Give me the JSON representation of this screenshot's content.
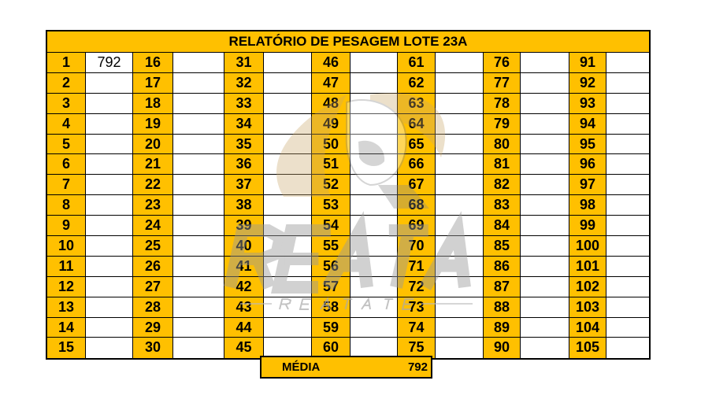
{
  "report": {
    "title": "RELATÓRIO DE PESAGEM LOTE  23A",
    "entries": [
      {
        "n": "1",
        "v": "792"
      },
      {
        "n": "2",
        "v": ""
      },
      {
        "n": "3",
        "v": ""
      },
      {
        "n": "4",
        "v": ""
      },
      {
        "n": "5",
        "v": ""
      },
      {
        "n": "6",
        "v": ""
      },
      {
        "n": "7",
        "v": ""
      },
      {
        "n": "8",
        "v": ""
      },
      {
        "n": "9",
        "v": ""
      },
      {
        "n": "10",
        "v": ""
      },
      {
        "n": "11",
        "v": ""
      },
      {
        "n": "12",
        "v": ""
      },
      {
        "n": "13",
        "v": ""
      },
      {
        "n": "14",
        "v": ""
      },
      {
        "n": "15",
        "v": ""
      },
      {
        "n": "16",
        "v": ""
      },
      {
        "n": "17",
        "v": ""
      },
      {
        "n": "18",
        "v": ""
      },
      {
        "n": "19",
        "v": ""
      },
      {
        "n": "20",
        "v": ""
      },
      {
        "n": "21",
        "v": ""
      },
      {
        "n": "22",
        "v": ""
      },
      {
        "n": "23",
        "v": ""
      },
      {
        "n": "24",
        "v": ""
      },
      {
        "n": "25",
        "v": ""
      },
      {
        "n": "26",
        "v": ""
      },
      {
        "n": "27",
        "v": ""
      },
      {
        "n": "28",
        "v": ""
      },
      {
        "n": "29",
        "v": ""
      },
      {
        "n": "30",
        "v": ""
      },
      {
        "n": "31",
        "v": ""
      },
      {
        "n": "32",
        "v": ""
      },
      {
        "n": "33",
        "v": ""
      },
      {
        "n": "34",
        "v": ""
      },
      {
        "n": "35",
        "v": ""
      },
      {
        "n": "36",
        "v": ""
      },
      {
        "n": "37",
        "v": ""
      },
      {
        "n": "38",
        "v": ""
      },
      {
        "n": "39",
        "v": ""
      },
      {
        "n": "40",
        "v": ""
      },
      {
        "n": "41",
        "v": ""
      },
      {
        "n": "42",
        "v": ""
      },
      {
        "n": "43",
        "v": ""
      },
      {
        "n": "44",
        "v": ""
      },
      {
        "n": "45",
        "v": ""
      },
      {
        "n": "46",
        "v": ""
      },
      {
        "n": "47",
        "v": ""
      },
      {
        "n": "48",
        "v": ""
      },
      {
        "n": "49",
        "v": ""
      },
      {
        "n": "50",
        "v": ""
      },
      {
        "n": "51",
        "v": ""
      },
      {
        "n": "52",
        "v": ""
      },
      {
        "n": "53",
        "v": ""
      },
      {
        "n": "54",
        "v": ""
      },
      {
        "n": "55",
        "v": ""
      },
      {
        "n": "56",
        "v": ""
      },
      {
        "n": "57",
        "v": ""
      },
      {
        "n": "58",
        "v": ""
      },
      {
        "n": "59",
        "v": ""
      },
      {
        "n": "60",
        "v": ""
      },
      {
        "n": "61",
        "v": ""
      },
      {
        "n": "62",
        "v": ""
      },
      {
        "n": "63",
        "v": ""
      },
      {
        "n": "64",
        "v": ""
      },
      {
        "n": "65",
        "v": ""
      },
      {
        "n": "66",
        "v": ""
      },
      {
        "n": "67",
        "v": ""
      },
      {
        "n": "68",
        "v": ""
      },
      {
        "n": "69",
        "v": ""
      },
      {
        "n": "70",
        "v": ""
      },
      {
        "n": "71",
        "v": ""
      },
      {
        "n": "72",
        "v": ""
      },
      {
        "n": "73",
        "v": ""
      },
      {
        "n": "74",
        "v": ""
      },
      {
        "n": "75",
        "v": ""
      },
      {
        "n": "76",
        "v": ""
      },
      {
        "n": "77",
        "v": ""
      },
      {
        "n": "78",
        "v": ""
      },
      {
        "n": "79",
        "v": ""
      },
      {
        "n": "80",
        "v": ""
      },
      {
        "n": "81",
        "v": ""
      },
      {
        "n": "82",
        "v": ""
      },
      {
        "n": "83",
        "v": ""
      },
      {
        "n": "84",
        "v": ""
      },
      {
        "n": "85",
        "v": ""
      },
      {
        "n": "86",
        "v": ""
      },
      {
        "n": "87",
        "v": ""
      },
      {
        "n": "88",
        "v": ""
      },
      {
        "n": "89",
        "v": ""
      },
      {
        "n": "90",
        "v": ""
      },
      {
        "n": "91",
        "v": ""
      },
      {
        "n": "92",
        "v": ""
      },
      {
        "n": "93",
        "v": ""
      },
      {
        "n": "94",
        "v": ""
      },
      {
        "n": "95",
        "v": ""
      },
      {
        "n": "96",
        "v": ""
      },
      {
        "n": "97",
        "v": ""
      },
      {
        "n": "98",
        "v": ""
      },
      {
        "n": "99",
        "v": ""
      },
      {
        "n": "100",
        "v": ""
      },
      {
        "n": "101",
        "v": ""
      },
      {
        "n": "102",
        "v": ""
      },
      {
        "n": "103",
        "v": ""
      },
      {
        "n": "104",
        "v": ""
      },
      {
        "n": "105",
        "v": ""
      }
    ]
  },
  "average": {
    "label": "MÉDIA",
    "value": "792"
  },
  "watermark": {
    "logo_text": "REATA",
    "logo_subtext": "R E A T A T E",
    "icon": "bull-head-icon"
  },
  "colors": {
    "header_fill": "#FFC000",
    "grid_line": "#000000",
    "watermark": "#9a9a9a"
  }
}
